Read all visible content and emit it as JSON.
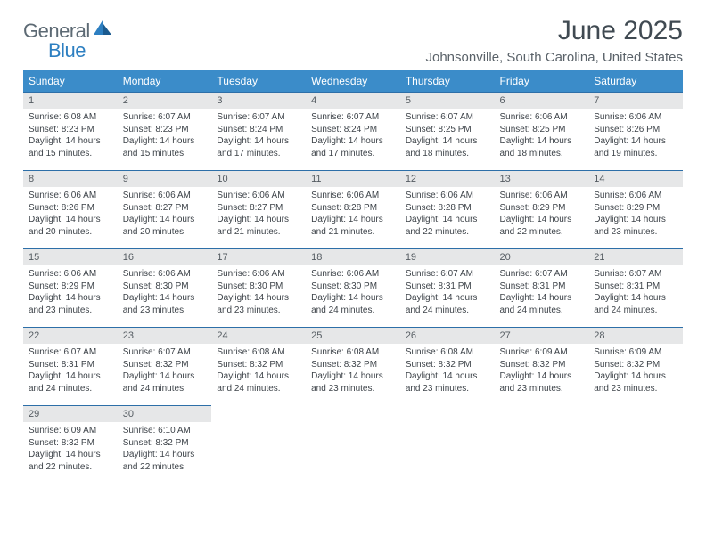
{
  "logo": {
    "word1": "General",
    "word2": "Blue"
  },
  "title": "June 2025",
  "subtitle": "Johnsonville, South Carolina, United States",
  "colors": {
    "header_bg": "#3b8cc9",
    "header_text": "#ffffff",
    "daynum_bg": "#e6e7e8",
    "row_border": "#2d6fa8",
    "logo_gray": "#5d6a74",
    "logo_blue": "#2d7fc1"
  },
  "daysOfWeek": [
    "Sunday",
    "Monday",
    "Tuesday",
    "Wednesday",
    "Thursday",
    "Friday",
    "Saturday"
  ],
  "weeks": [
    [
      {
        "n": "1",
        "sr": "6:08 AM",
        "ss": "8:23 PM",
        "dl": "14 hours and 15 minutes."
      },
      {
        "n": "2",
        "sr": "6:07 AM",
        "ss": "8:23 PM",
        "dl": "14 hours and 15 minutes."
      },
      {
        "n": "3",
        "sr": "6:07 AM",
        "ss": "8:24 PM",
        "dl": "14 hours and 17 minutes."
      },
      {
        "n": "4",
        "sr": "6:07 AM",
        "ss": "8:24 PM",
        "dl": "14 hours and 17 minutes."
      },
      {
        "n": "5",
        "sr": "6:07 AM",
        "ss": "8:25 PM",
        "dl": "14 hours and 18 minutes."
      },
      {
        "n": "6",
        "sr": "6:06 AM",
        "ss": "8:25 PM",
        "dl": "14 hours and 18 minutes."
      },
      {
        "n": "7",
        "sr": "6:06 AM",
        "ss": "8:26 PM",
        "dl": "14 hours and 19 minutes."
      }
    ],
    [
      {
        "n": "8",
        "sr": "6:06 AM",
        "ss": "8:26 PM",
        "dl": "14 hours and 20 minutes."
      },
      {
        "n": "9",
        "sr": "6:06 AM",
        "ss": "8:27 PM",
        "dl": "14 hours and 20 minutes."
      },
      {
        "n": "10",
        "sr": "6:06 AM",
        "ss": "8:27 PM",
        "dl": "14 hours and 21 minutes."
      },
      {
        "n": "11",
        "sr": "6:06 AM",
        "ss": "8:28 PM",
        "dl": "14 hours and 21 minutes."
      },
      {
        "n": "12",
        "sr": "6:06 AM",
        "ss": "8:28 PM",
        "dl": "14 hours and 22 minutes."
      },
      {
        "n": "13",
        "sr": "6:06 AM",
        "ss": "8:29 PM",
        "dl": "14 hours and 22 minutes."
      },
      {
        "n": "14",
        "sr": "6:06 AM",
        "ss": "8:29 PM",
        "dl": "14 hours and 23 minutes."
      }
    ],
    [
      {
        "n": "15",
        "sr": "6:06 AM",
        "ss": "8:29 PM",
        "dl": "14 hours and 23 minutes."
      },
      {
        "n": "16",
        "sr": "6:06 AM",
        "ss": "8:30 PM",
        "dl": "14 hours and 23 minutes."
      },
      {
        "n": "17",
        "sr": "6:06 AM",
        "ss": "8:30 PM",
        "dl": "14 hours and 23 minutes."
      },
      {
        "n": "18",
        "sr": "6:06 AM",
        "ss": "8:30 PM",
        "dl": "14 hours and 24 minutes."
      },
      {
        "n": "19",
        "sr": "6:07 AM",
        "ss": "8:31 PM",
        "dl": "14 hours and 24 minutes."
      },
      {
        "n": "20",
        "sr": "6:07 AM",
        "ss": "8:31 PM",
        "dl": "14 hours and 24 minutes."
      },
      {
        "n": "21",
        "sr": "6:07 AM",
        "ss": "8:31 PM",
        "dl": "14 hours and 24 minutes."
      }
    ],
    [
      {
        "n": "22",
        "sr": "6:07 AM",
        "ss": "8:31 PM",
        "dl": "14 hours and 24 minutes."
      },
      {
        "n": "23",
        "sr": "6:07 AM",
        "ss": "8:32 PM",
        "dl": "14 hours and 24 minutes."
      },
      {
        "n": "24",
        "sr": "6:08 AM",
        "ss": "8:32 PM",
        "dl": "14 hours and 24 minutes."
      },
      {
        "n": "25",
        "sr": "6:08 AM",
        "ss": "8:32 PM",
        "dl": "14 hours and 23 minutes."
      },
      {
        "n": "26",
        "sr": "6:08 AM",
        "ss": "8:32 PM",
        "dl": "14 hours and 23 minutes."
      },
      {
        "n": "27",
        "sr": "6:09 AM",
        "ss": "8:32 PM",
        "dl": "14 hours and 23 minutes."
      },
      {
        "n": "28",
        "sr": "6:09 AM",
        "ss": "8:32 PM",
        "dl": "14 hours and 23 minutes."
      }
    ],
    [
      {
        "n": "29",
        "sr": "6:09 AM",
        "ss": "8:32 PM",
        "dl": "14 hours and 22 minutes."
      },
      {
        "n": "30",
        "sr": "6:10 AM",
        "ss": "8:32 PM",
        "dl": "14 hours and 22 minutes."
      },
      null,
      null,
      null,
      null,
      null
    ]
  ],
  "labels": {
    "sunrise": "Sunrise:",
    "sunset": "Sunset:",
    "daylight": "Daylight:"
  }
}
